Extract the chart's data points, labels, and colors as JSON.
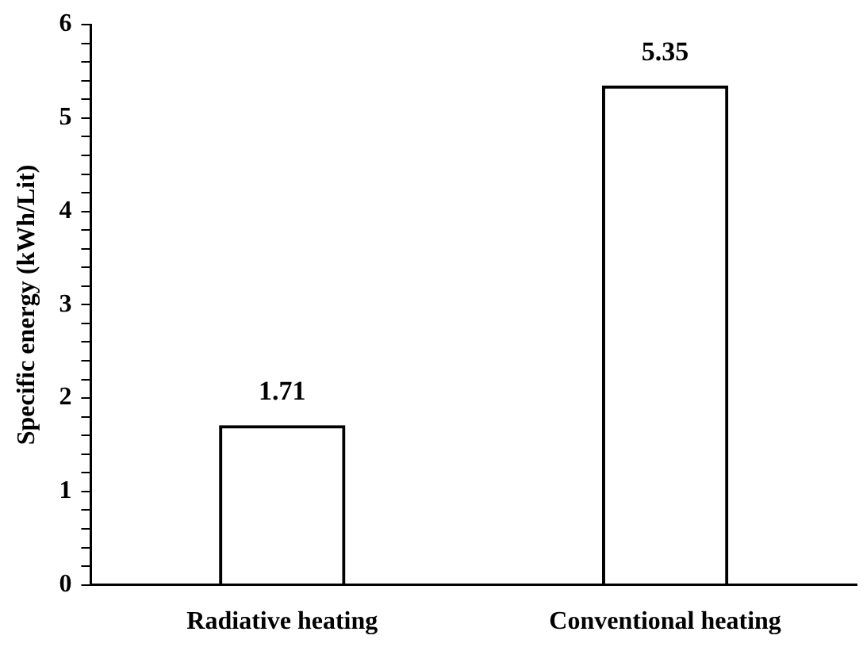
{
  "chart_data": {
    "type": "bar",
    "ylabel": "Specific energy (kWh/Lit)",
    "categories": [
      "Radiative heating",
      "Conventional heating"
    ],
    "values": [
      1.71,
      5.35
    ],
    "color": "#000000",
    "data_labels": true,
    "ylim": [
      0,
      6
    ],
    "yticks": [
      0,
      {
        "value": 0.2,
        "label": null
      },
      {
        "value": 0.4,
        "label": null
      },
      {
        "value": 0.6,
        "label": null
      },
      {
        "value": 0.8,
        "label": null
      },
      1,
      {
        "value": 1.2,
        "label": null
      },
      {
        "value": 1.4,
        "label": null
      },
      {
        "value": 1.6,
        "label": null
      },
      {
        "value": 1.8,
        "label": null
      },
      2,
      {
        "value": 2.2,
        "label": null
      },
      {
        "value": 2.4,
        "label": null
      },
      {
        "value": 2.6,
        "label": null
      },
      {
        "value": 2.8,
        "label": null
      },
      3,
      {
        "value": 3.2,
        "label": null
      },
      {
        "value": 3.4,
        "label": null
      },
      {
        "value": 3.6,
        "label": null
      },
      {
        "value": 3.8,
        "label": null
      },
      4,
      {
        "value": 4.2,
        "label": null
      },
      {
        "value": 4.4,
        "label": null
      },
      {
        "value": 4.6,
        "label": null
      },
      {
        "value": 4.8,
        "label": null
      },
      5,
      {
        "value": 5.2,
        "label": null
      },
      {
        "value": 5.4,
        "label": null
      },
      {
        "value": 5.6,
        "label": null
      },
      {
        "value": 5.8,
        "label": null
      },
      6
    ],
    "grid": false,
    "legend": false
  }
}
